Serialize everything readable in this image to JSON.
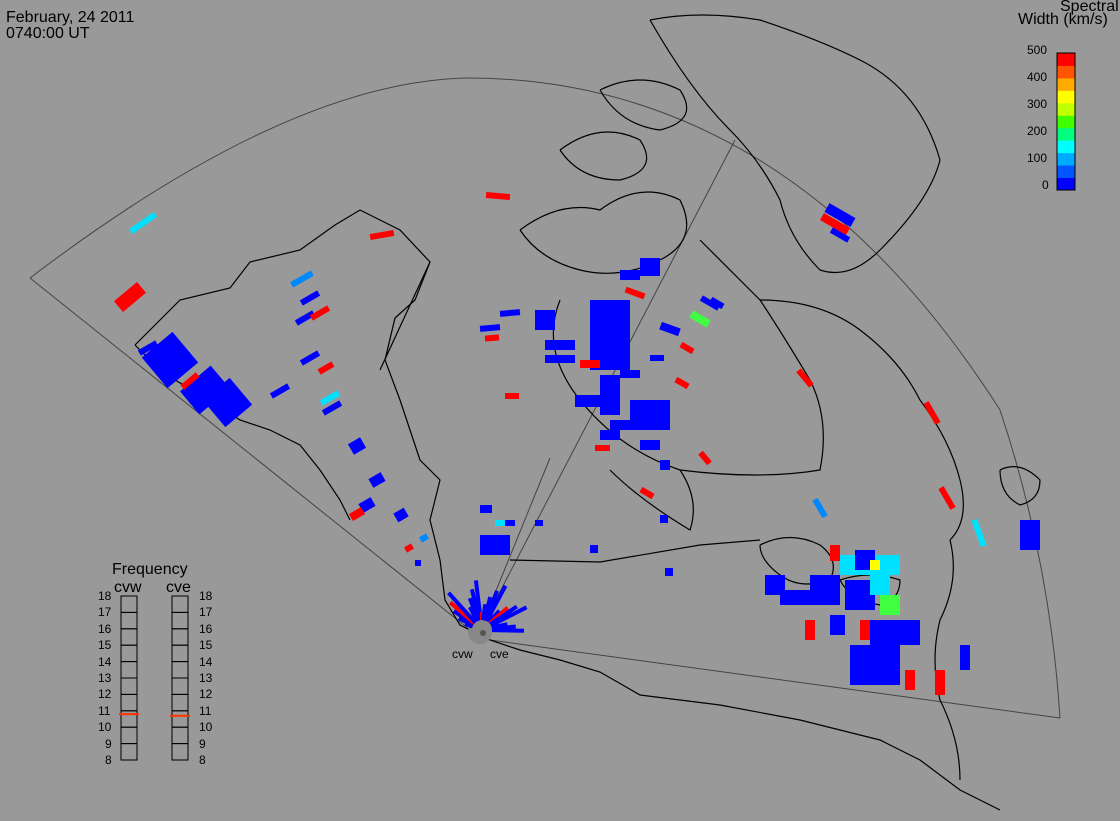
{
  "header": {
    "date": "February, 24 2011",
    "time": "0740:00 UT"
  },
  "colorbar": {
    "title_line1": "Spectral",
    "title_line2": "Width (km/s)",
    "ticks": [
      "500",
      "400",
      "300",
      "200",
      "100",
      "0"
    ],
    "range": [
      0,
      500
    ],
    "colors": [
      "#0000ff",
      "#0055ff",
      "#00aaff",
      "#00ffff",
      "#00ff80",
      "#40ff00",
      "#c0ff00",
      "#ffff00",
      "#ffaa00",
      "#ff5500",
      "#ff0000"
    ]
  },
  "radars": {
    "west": {
      "label": "cvw",
      "frequency_mhz": 10.8
    },
    "east": {
      "label": "cve",
      "frequency_mhz": 10.7
    }
  },
  "frequency_panel": {
    "title": "Frequency",
    "ticks": [
      "18",
      "17",
      "16",
      "15",
      "14",
      "13",
      "12",
      "11",
      "10",
      "9",
      "8"
    ],
    "range": [
      8,
      18
    ],
    "marker_color": "#ff3300"
  },
  "map_colors": {
    "background": "#999999",
    "coast": "#000000",
    "field_of_view": "#444444"
  }
}
